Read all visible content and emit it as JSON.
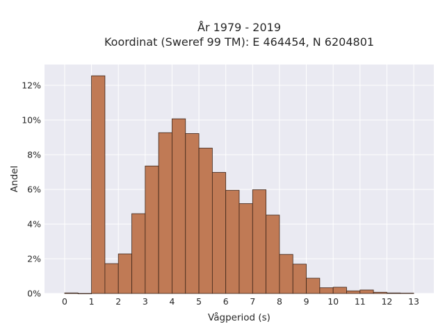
{
  "chart_data": {
    "type": "bar",
    "title": "År 1979 - 2019",
    "subtitle": "Koordinat (Sweref 99 TM): E 464454, N 6204801",
    "xlabel": "Vågperiod (s)",
    "ylabel": "Andel",
    "xlim": [
      -0.75,
      13.75
    ],
    "ylim": [
      0,
      13.2
    ],
    "x_ticks": [
      0,
      1,
      2,
      3,
      4,
      5,
      6,
      7,
      8,
      9,
      10,
      11,
      12,
      13
    ],
    "y_ticks": [
      0,
      2,
      4,
      6,
      8,
      10,
      12
    ],
    "y_tick_labels": [
      "0%",
      "2%",
      "4%",
      "6%",
      "8%",
      "10%",
      "12%"
    ],
    "bin_width": 0.5,
    "bins": [
      {
        "x0": 0.0,
        "value": 0.03
      },
      {
        "x0": 0.5,
        "value": 0.0
      },
      {
        "x0": 1.0,
        "value": 12.55
      },
      {
        "x0": 1.5,
        "value": 1.72
      },
      {
        "x0": 2.0,
        "value": 2.28
      },
      {
        "x0": 2.5,
        "value": 4.6
      },
      {
        "x0": 3.0,
        "value": 7.35
      },
      {
        "x0": 3.5,
        "value": 9.27
      },
      {
        "x0": 4.0,
        "value": 10.07
      },
      {
        "x0": 4.5,
        "value": 9.22
      },
      {
        "x0": 5.0,
        "value": 8.38
      },
      {
        "x0": 5.5,
        "value": 6.98
      },
      {
        "x0": 6.0,
        "value": 5.95
      },
      {
        "x0": 6.5,
        "value": 5.18
      },
      {
        "x0": 7.0,
        "value": 5.98
      },
      {
        "x0": 7.5,
        "value": 4.52
      },
      {
        "x0": 8.0,
        "value": 2.25
      },
      {
        "x0": 8.5,
        "value": 1.69
      },
      {
        "x0": 9.0,
        "value": 0.88
      },
      {
        "x0": 9.5,
        "value": 0.33
      },
      {
        "x0": 10.0,
        "value": 0.36
      },
      {
        "x0": 10.5,
        "value": 0.15
      },
      {
        "x0": 11.0,
        "value": 0.2
      },
      {
        "x0": 11.5,
        "value": 0.07
      },
      {
        "x0": 12.0,
        "value": 0.03
      },
      {
        "x0": 12.5,
        "value": 0.02
      }
    ],
    "grid": true,
    "bar_color": "#c07a55",
    "bar_edge_color": "#3b2418",
    "plot_background": "#eaeaf2",
    "grid_color": "#ffffff"
  }
}
